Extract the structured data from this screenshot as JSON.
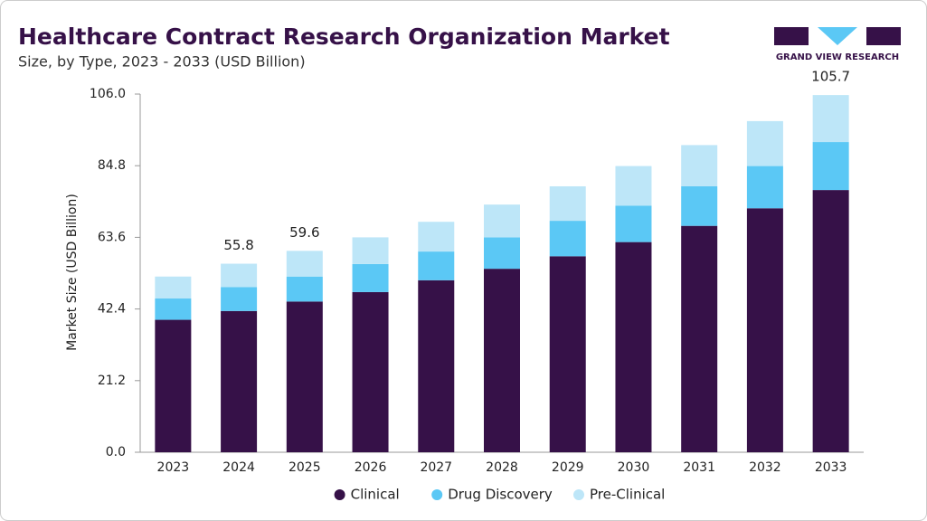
{
  "brand": "GRAND VIEW RESEARCH",
  "chart_data": {
    "type": "stacked_bar",
    "title": "Healthcare Contract Research Organization Market",
    "subtitle": "Size, by Type, 2023 - 2033 (USD Billion)",
    "y_label": "Market Size (USD Billion)",
    "categories": [
      "2023",
      "2024",
      "2025",
      "2026",
      "2027",
      "2028",
      "2029",
      "2030",
      "2031",
      "2032",
      "2033"
    ],
    "series": [
      {
        "name": "Clinical",
        "color": "#361148",
        "values": [
          39.2,
          41.8,
          44.6,
          47.4,
          50.9,
          54.3,
          58.0,
          62.2,
          67.0,
          72.2,
          77.6
        ]
      },
      {
        "name": "Drug Discovery",
        "color": "#5bc8f5",
        "values": [
          6.3,
          7.1,
          7.4,
          8.3,
          8.5,
          9.3,
          10.5,
          10.8,
          11.7,
          12.5,
          14.2
        ]
      },
      {
        "name": "Pre-Clinical",
        "color": "#bde6f8",
        "values": [
          6.5,
          6.9,
          7.6,
          7.9,
          8.8,
          9.7,
          10.2,
          11.7,
          12.2,
          13.3,
          13.9
        ]
      }
    ],
    "totals": [
      null,
      55.8,
      59.6,
      null,
      null,
      null,
      null,
      null,
      null,
      null,
      105.7
    ],
    "ylim": [
      0,
      106
    ],
    "yticks": [
      {
        "value": 0,
        "label": "0.0"
      },
      {
        "value": 21.2,
        "label": "21.2"
      },
      {
        "value": 42.4,
        "label": "42.4"
      },
      {
        "value": 63.6,
        "label": "63.6"
      },
      {
        "value": 84.8,
        "label": "84.8"
      },
      {
        "value": 106,
        "label": "106.0"
      }
    ],
    "grid": false,
    "legend": "bottom"
  }
}
